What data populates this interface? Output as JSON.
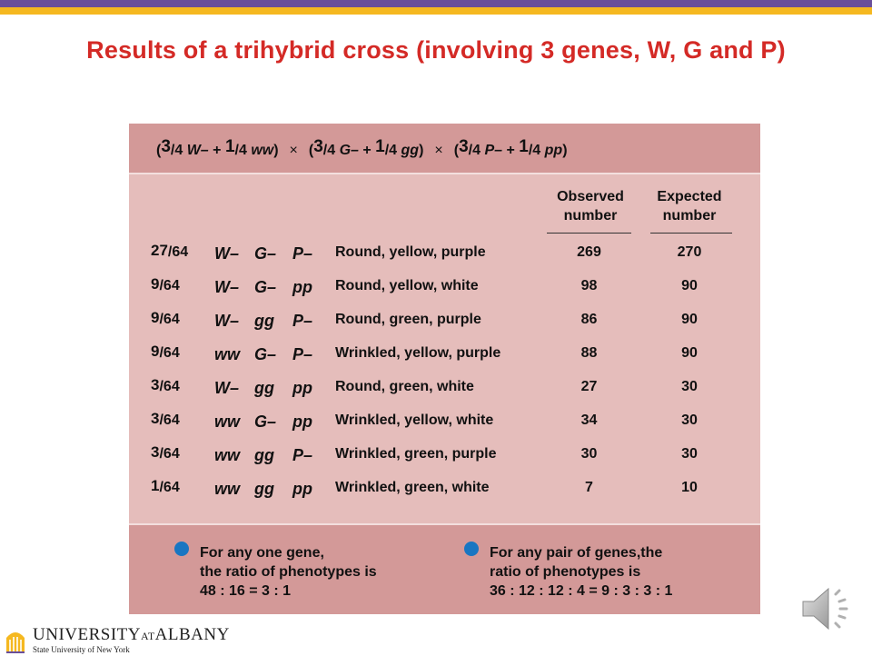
{
  "title": "Results of a trihybrid cross (involving 3 genes, W, G and P)",
  "cross": {
    "t1a": "3",
    "t1b": "/4 ",
    "t1c": "W–",
    "plus1": " + ",
    "t1d": "1",
    "t1e": "/4 ",
    "t1f": "ww",
    "t1g": ")",
    "times": "×",
    "t2a": "3",
    "t2b": "/4 ",
    "t2c": "G–",
    "plus2": " + ",
    "t2d": "1",
    "t2e": "/4 ",
    "t2f": "gg",
    "t2g": ")",
    "t3a": "3",
    "t3b": "/4 ",
    "t3c": "P–",
    "plus3": " + ",
    "t3d": "1",
    "t3e": "/4 ",
    "t3f": "pp",
    "t3g": ")",
    "open": "("
  },
  "columns": {
    "observed": [
      "Observed",
      "number"
    ],
    "expected": [
      "Expected",
      "number"
    ]
  },
  "rows": [
    {
      "num": "27",
      "den": "/64",
      "w": "W–",
      "g": "G–",
      "p": "P–",
      "phenotype": "Round, yellow, purple",
      "observed": "269",
      "expected": "270"
    },
    {
      "num": "9",
      "den": "/64",
      "w": "W–",
      "g": "G–",
      "p": "pp",
      "phenotype": "Round, yellow, white",
      "observed": "98",
      "expected": "90"
    },
    {
      "num": "9",
      "den": "/64",
      "w": "W–",
      "g": "gg",
      "p": "P–",
      "phenotype": "Round, green, purple",
      "observed": "86",
      "expected": "90"
    },
    {
      "num": "9",
      "den": "/64",
      "w": "ww",
      "g": "G–",
      "p": "P–",
      "phenotype": "Wrinkled, yellow, purple",
      "observed": "88",
      "expected": "90"
    },
    {
      "num": "3",
      "den": "/64",
      "w": "W–",
      "g": "gg",
      "p": "pp",
      "phenotype": "Round, green, white",
      "observed": "27",
      "expected": "30"
    },
    {
      "num": "3",
      "den": "/64",
      "w": "ww",
      "g": "G–",
      "p": "pp",
      "phenotype": "Wrinkled, yellow, white",
      "observed": "34",
      "expected": "30"
    },
    {
      "num": "3",
      "den": "/64",
      "w": "ww",
      "g": "gg",
      "p": "P–",
      "phenotype": "Wrinkled, green, purple",
      "observed": "30",
      "expected": "30"
    },
    {
      "num": "1",
      "den": "/64",
      "w": "ww",
      "g": "gg",
      "p": "pp",
      "phenotype": "Wrinkled, green, white",
      "observed": "7",
      "expected": "10"
    }
  ],
  "notes": {
    "left": [
      "For any one gene,",
      "the ratio of phenotypes is",
      "48 : 16 = 3 : 1"
    ],
    "right": [
      "For any pair of genes,the",
      "ratio of phenotypes is",
      "36 : 12 : 12 : 4 = 9 : 3 : 3 : 1"
    ]
  },
  "logo": {
    "line1a": "UNIVERSITY",
    "line1b": "AT",
    "line1c": "ALBANY",
    "line2": "State University of New York"
  },
  "icons": {
    "bullet": "bullet-dot",
    "speaker": "speaker-icon",
    "logo_mark": "university-seal-icon"
  },
  "colors": {
    "title": "#d42a26",
    "accent_purple": "#6a4f9a",
    "accent_gold": "#f5b820",
    "bullet": "#1976c2",
    "panel": "#e5bdbb",
    "band": "#d39998"
  }
}
